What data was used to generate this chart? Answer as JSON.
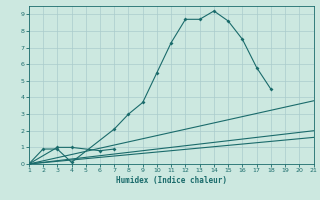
{
  "title": "",
  "xlabel": "Humidex (Indice chaleur)",
  "xlim": [
    1,
    21
  ],
  "ylim": [
    0,
    9.5
  ],
  "xticks": [
    1,
    2,
    3,
    4,
    5,
    6,
    7,
    8,
    9,
    10,
    11,
    12,
    13,
    14,
    15,
    16,
    17,
    18,
    19,
    20,
    21
  ],
  "yticks": [
    0,
    1,
    2,
    3,
    4,
    5,
    6,
    7,
    8,
    9
  ],
  "bg_color": "#cce8e0",
  "line_color": "#1a6b6b",
  "grid_color": "#aacccc",
  "series": [
    {
      "x": [
        1,
        2,
        3,
        4,
        7,
        8,
        9,
        10,
        11,
        12,
        13,
        14,
        15,
        16,
        17,
        18
      ],
      "y": [
        0,
        0.9,
        0.9,
        0.1,
        2.1,
        3.0,
        3.7,
        5.5,
        7.3,
        8.7,
        8.7,
        9.2,
        8.6,
        7.5,
        5.8,
        4.5
      ]
    },
    {
      "x": [
        1,
        3,
        4,
        6,
        7
      ],
      "y": [
        0,
        1.0,
        1.0,
        0.8,
        0.9
      ]
    },
    {
      "x": [
        1,
        21
      ],
      "y": [
        0.0,
        3.8
      ]
    },
    {
      "x": [
        1,
        21
      ],
      "y": [
        0.0,
        2.0
      ]
    },
    {
      "x": [
        1,
        21
      ],
      "y": [
        0.0,
        1.6
      ]
    }
  ]
}
